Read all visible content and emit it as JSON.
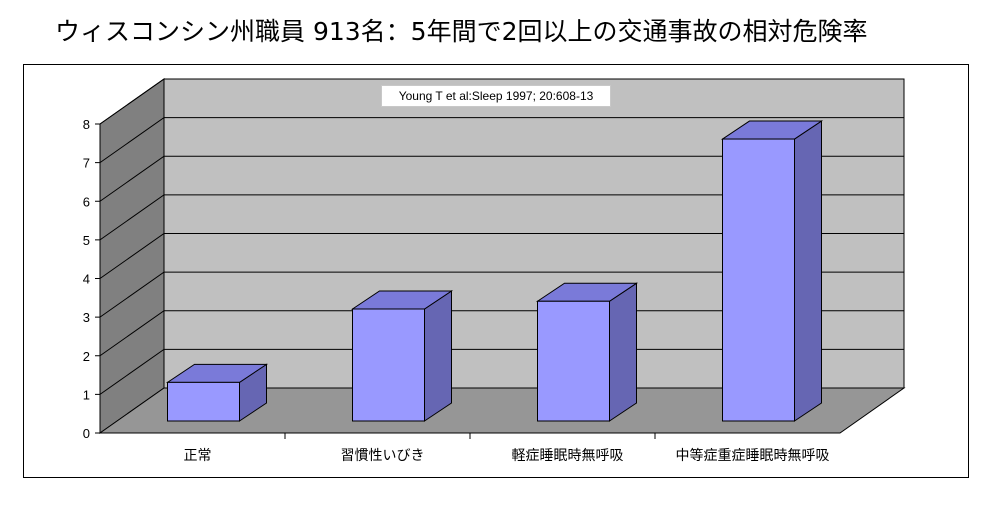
{
  "title": "ウィスコンシン州職員 913名：5年間で2回以上の交通事故の相対危険率",
  "annotation": "Young T et al:Sleep 1997; 20:608-13",
  "colors": {
    "back_wall": "#c0c0c0",
    "floor": "#969696",
    "bar_front": "#9999ff",
    "bar_top": "#7a7ad9",
    "bar_side": "#6666b3",
    "gridline": "#000000"
  },
  "chart_data": {
    "type": "bar",
    "title": "ウィスコンシン州職員 913名：5年間で2回以上の交通事故の相対危険率",
    "xlabel": "",
    "ylabel": "",
    "categories": [
      "正常",
      "習慣性いびき",
      "軽症睡眠時無呼吸",
      "中等症重症睡眠時無呼吸"
    ],
    "values": [
      1.0,
      2.9,
      3.1,
      7.3
    ],
    "ylim": [
      0,
      8
    ],
    "yticks": [
      "0",
      "1",
      "2",
      "3",
      "4",
      "5",
      "6",
      "7",
      "8"
    ],
    "grid": true,
    "legend": "none",
    "style": "3d-column"
  }
}
